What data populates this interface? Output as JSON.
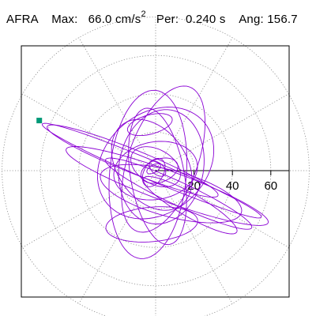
{
  "header": {
    "station": "AFRA",
    "max_label": "Max:",
    "max_value": "66.0 cm/s",
    "max_exponent": "2",
    "per_label": "Per:",
    "per_value": "0.240 s",
    "ang_label": "Ang:",
    "ang_value": "156.7"
  },
  "chart_data": {
    "type": "scatter",
    "subtype": "polar-hodogram",
    "title": "AFRA",
    "units": "cm/s^2",
    "max": 66.0,
    "period_s": 0.24,
    "angle_deg": 156.7,
    "radial_ticks": [
      20,
      40,
      60
    ],
    "radial_tick_labels": [
      "20",
      "40",
      "60"
    ],
    "radial_max": 80,
    "grid": true,
    "grid_style": "dotted",
    "spoke_step_deg": 30,
    "trace_color": "#8a00d4",
    "marker_color": "#009977",
    "max_marker": {
      "angle_deg": 156.7,
      "r": 66.0
    },
    "loops": [
      {
        "cx": 2,
        "cy": 0,
        "a": 10,
        "b": 6,
        "rot": 20
      },
      {
        "cx": 0,
        "cy": 2,
        "a": 14,
        "b": 9,
        "rot": -30
      },
      {
        "cx": -1,
        "cy": -1,
        "a": 8,
        "b": 5,
        "rot": 60
      },
      {
        "cx": 0,
        "cy": 0,
        "a": 22,
        "b": 15,
        "rot": 10
      },
      {
        "cx": 3,
        "cy": 2,
        "a": 30,
        "b": 22,
        "rot": 80
      },
      {
        "cx": -2,
        "cy": 3,
        "a": 26,
        "b": 18,
        "rot": -55
      },
      {
        "cx": 1,
        "cy": -3,
        "a": 36,
        "b": 14,
        "rot": 100
      },
      {
        "cx": 4,
        "cy": 6,
        "a": 40,
        "b": 18,
        "rot": 70
      },
      {
        "cx": -4,
        "cy": -2,
        "a": 44,
        "b": 20,
        "rot": 85
      },
      {
        "cx": 0,
        "cy": 4,
        "a": 33,
        "b": 26,
        "rot": 40
      },
      {
        "cx": 12,
        "cy": -12,
        "a": 42,
        "b": 6,
        "rot": -25
      },
      {
        "cx": 6,
        "cy": -8,
        "a": 56,
        "b": 8,
        "rot": -20
      },
      {
        "cx": -12,
        "cy": 5,
        "a": 48,
        "b": 6,
        "rot": -22
      },
      {
        "cx": -2,
        "cy": 0,
        "a": 62,
        "b": 5,
        "rot": -23
      },
      {
        "cx": 8,
        "cy": -12,
        "a": 38,
        "b": 12,
        "rot": -15
      },
      {
        "cx": 18,
        "cy": -18,
        "a": 28,
        "b": 6,
        "rot": -30
      },
      {
        "cx": -2,
        "cy": -28,
        "a": 24,
        "b": 9,
        "rot": 5
      },
      {
        "cx": -3,
        "cy": 24,
        "a": 12,
        "b": 5,
        "rot": 15
      },
      {
        "cx": 1,
        "cy": 1,
        "a": 5,
        "b": 3,
        "rot": -40
      },
      {
        "cx": -1,
        "cy": 1,
        "a": 4,
        "b": 2,
        "rot": 30
      }
    ]
  }
}
